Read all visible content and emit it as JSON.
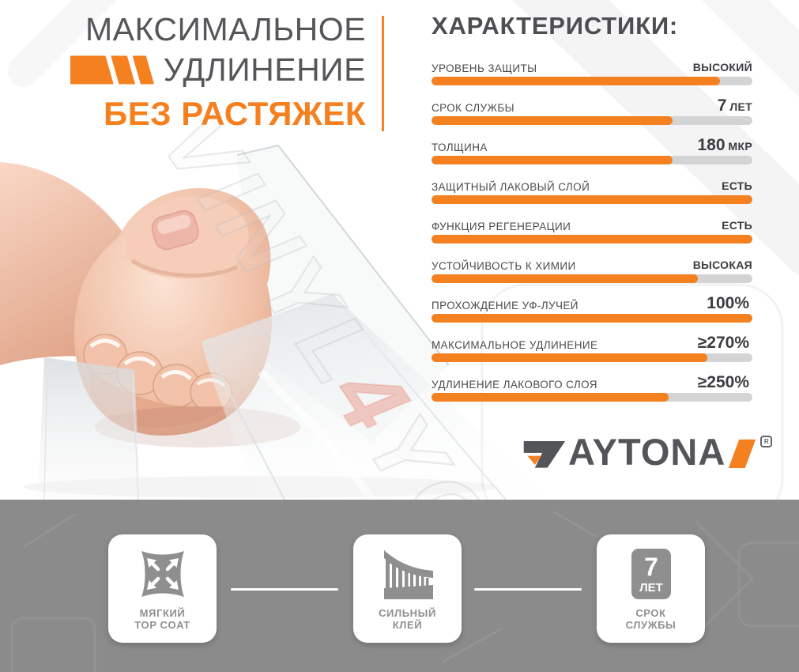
{
  "colors": {
    "accent_orange": "#f5801f",
    "title_gray": "#55565a",
    "heading_gray": "#4d4e52",
    "label_gray": "#4a4b4e",
    "value_gray": "#3b3c40",
    "bar_track": "#d4d4d4",
    "band_background": "#8b8b8b",
    "card_text_gray": "#8f8f8f",
    "watermark_red": "rgba(224,88,66,0.3)"
  },
  "header": {
    "title_line1": "МАКСИМАЛЬНОЕ",
    "title_line2": "УДЛИНЕНИЕ",
    "title_line3": "БЕЗ РАСТЯЖЕК",
    "mark_icon": "orange-striped-parallelogram-icon"
  },
  "watermark": {
    "text": "VINYL4YOU",
    "part_vinyl": "VINYL",
    "part_four": "4",
    "part_you": "YOU"
  },
  "characteristics": {
    "heading": "ХАРАКТЕРИСТИКИ:",
    "rows": [
      {
        "label": "УРОВЕНЬ ЗАЩИТЫ",
        "value_big": "",
        "value_small": "ВЫСОКИЙ",
        "fill_pct": 90
      },
      {
        "label": "СРОК СЛУЖБЫ",
        "value_big": "7",
        "value_small": "ЛЕТ",
        "fill_pct": 75
      },
      {
        "label": "ТОЛЩИНА",
        "value_big": "180",
        "value_small": "МКР",
        "fill_pct": 75
      },
      {
        "label": "ЗАЩИТНЫЙ ЛАКОВЫЙ СЛОЙ",
        "value_big": "",
        "value_small": "ЕСТЬ",
        "fill_pct": 100
      },
      {
        "label": "ФУНКЦИЯ РЕГЕНЕРАЦИИ",
        "value_big": "",
        "value_small": "ЕСТЬ",
        "fill_pct": 100
      },
      {
        "label": "УСТОЙЧИВОСТЬ К ХИМИИ",
        "value_big": "",
        "value_small": "ВЫСОКАЯ",
        "fill_pct": 83
      },
      {
        "label": "ПРОХОЖДЕНИЕ УФ-ЛУЧЕЙ",
        "value_big": "100%",
        "value_small": "",
        "fill_pct": 100
      },
      {
        "label": "МАКСИМАЛЬНОЕ УДЛИНЕНИЕ",
        "value_big": "≥270%",
        "value_small": "",
        "fill_pct": 86
      },
      {
        "label": "УДЛИНЕНИЕ ЛАКОВОГО СЛОЯ",
        "value_big": "≥250%",
        "value_small": "",
        "fill_pct": 74
      }
    ]
  },
  "chart_data": {
    "type": "bar",
    "orientation": "horizontal",
    "title": "ХАРАКТЕРИСТИКИ:",
    "categories": [
      "УРОВЕНЬ ЗАЩИТЫ",
      "СРОК СЛУЖБЫ",
      "ТОЛЩИНА",
      "ЗАЩИТНЫЙ ЛАКОВЫЙ СЛОЙ",
      "ФУНКЦИЯ РЕГЕНЕРАЦИИ",
      "УСТОЙЧИВОСТЬ К ХИМИИ",
      "ПРОХОЖДЕНИЕ УФ-ЛУЧЕЙ",
      "МАКСИМАЛЬНОЕ УДЛИНЕНИЕ",
      "УДЛИНЕНИЕ ЛАКОВОГО СЛОЯ"
    ],
    "values": [
      90,
      75,
      75,
      100,
      100,
      83,
      100,
      86,
      74
    ],
    "value_labels": [
      "ВЫСОКИЙ",
      "7 ЛЕТ",
      "180 МКР",
      "ЕСТЬ",
      "ЕСТЬ",
      "ВЫСОКАЯ",
      "100%",
      "≥270%",
      "≥250%"
    ],
    "xlim": [
      0,
      100
    ],
    "bar_color": "#f5801f",
    "track_color": "#d4d4d4",
    "grid": false,
    "legend": false
  },
  "logo": {
    "brand": "DAYTONA",
    "letters_after_mark": "AYTONA",
    "registered_letter": "R",
    "d_mark_icon": "daytona-d-icon",
    "slash_icon": "orange-slash-icon"
  },
  "badges": [
    {
      "icon": "stretch-arrows-icon",
      "line1": "МЯГКИЙ",
      "line2": "TOP COAT"
    },
    {
      "icon": "adhesive-bristles-icon",
      "line1": "СИЛЬНЫЙ",
      "line2": "КЛЕЙ"
    },
    {
      "icon": "seven-years-icon",
      "icon_number": "7",
      "icon_unit": "ЛЕТ",
      "line1": "СРОК",
      "line2": "СЛУЖБЫ"
    }
  ]
}
